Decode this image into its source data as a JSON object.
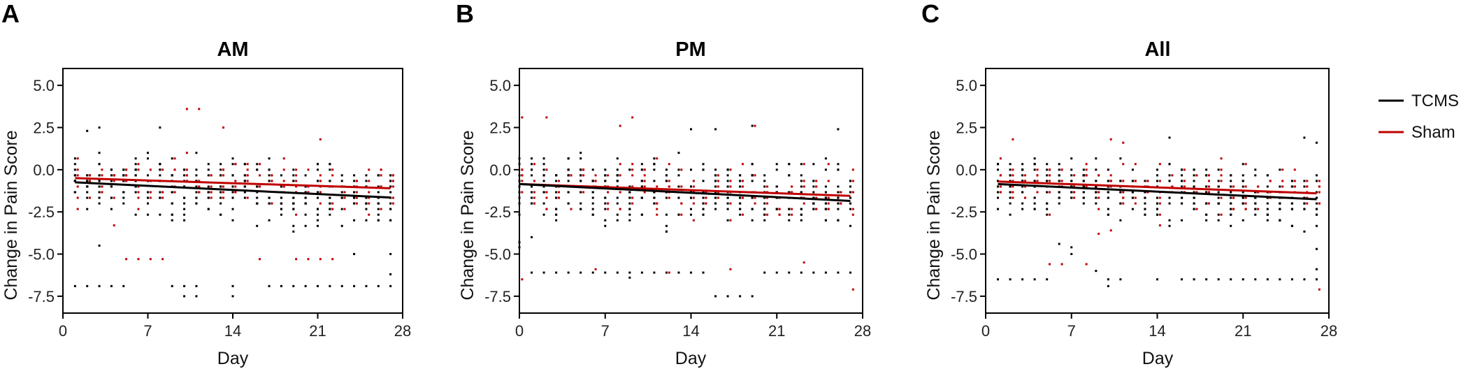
{
  "colors": {
    "tcms": "#000000",
    "sham": "#c00000",
    "axis": "#000000"
  },
  "legend": [
    {
      "name": "TCMS",
      "color": "#000000"
    },
    {
      "name": "Sham",
      "color": "#c00000"
    }
  ],
  "chart_data": [
    {
      "panel": "A",
      "title": "AM",
      "type": "scatter",
      "xlabel": "Day",
      "ylabel": "Change in Pain Score",
      "xlim": [
        0,
        28
      ],
      "ylim": [
        -8.5,
        6
      ],
      "xticks": [
        0,
        7,
        14,
        21,
        28
      ],
      "yticks": [
        5.0,
        2.5,
        0.0,
        -2.5,
        -5.0,
        -7.5
      ],
      "ytick_labels": [
        "5.0",
        "2.5",
        "0.0",
        "-2.5",
        "-5.0",
        "-7.5"
      ],
      "grid": false,
      "series": [
        {
          "name": "TCMS",
          "trend": {
            "x": [
              1,
              27
            ],
            "y": [
              -0.75,
              -1.65
            ]
          },
          "spread": 1.2,
          "outliers": [
            [
              1,
              -6.9
            ],
            [
              2,
              -6.9
            ],
            [
              3,
              -6.9
            ],
            [
              4,
              -6.9
            ],
            [
              5,
              -6.9
            ],
            [
              9,
              -6.9
            ],
            [
              10,
              -6.9
            ],
            [
              10,
              -7.5
            ],
            [
              11,
              -6.9
            ],
            [
              11,
              -7.5
            ],
            [
              14,
              -6.9
            ],
            [
              14,
              -7.5
            ],
            [
              17,
              -6.9
            ],
            [
              18,
              -6.9
            ],
            [
              19,
              -6.9
            ],
            [
              20,
              -6.9
            ],
            [
              21,
              -6.9
            ],
            [
              22,
              -6.9
            ],
            [
              23,
              -6.9
            ],
            [
              24,
              -6.9
            ],
            [
              25,
              -6.9
            ],
            [
              26,
              -6.9
            ],
            [
              27,
              -6.9
            ],
            [
              27,
              -5.0
            ],
            [
              27,
              -6.2
            ],
            [
              24,
              -5.0
            ],
            [
              3,
              -4.5
            ],
            [
              2,
              2.3
            ],
            [
              3,
              2.5
            ],
            [
              8,
              2.5
            ]
          ]
        },
        {
          "name": "Sham",
          "trend": {
            "x": [
              1,
              27
            ],
            "y": [
              -0.5,
              -1.1
            ]
          },
          "spread": 1.0,
          "outliers": [
            [
              10,
              3.6
            ],
            [
              11,
              3.6
            ],
            [
              13,
              2.5
            ],
            [
              5,
              -5.3
            ],
            [
              6,
              -5.3
            ],
            [
              7,
              -5.3
            ],
            [
              8,
              -5.3
            ],
            [
              16,
              -5.3
            ],
            [
              19,
              -5.3
            ],
            [
              20,
              -5.3
            ],
            [
              21,
              -5.3
            ],
            [
              22,
              -5.3
            ],
            [
              4,
              -3.3
            ],
            [
              21,
              1.8
            ]
          ]
        }
      ]
    },
    {
      "panel": "B",
      "title": "PM",
      "type": "scatter",
      "xlabel": "Day",
      "ylabel": "Change in Pain Score",
      "xlim": [
        0,
        28
      ],
      "ylim": [
        -8.5,
        6
      ],
      "xticks": [
        0,
        7,
        14,
        21,
        28
      ],
      "yticks": [
        5.0,
        2.5,
        0.0,
        -2.5,
        -5.0,
        -7.5
      ],
      "ytick_labels": [
        "5.0",
        "2.5",
        "0.0",
        "-2.5",
        "-5.0",
        "-7.5"
      ],
      "grid": false,
      "series": [
        {
          "name": "TCMS",
          "trend": {
            "x": [
              0,
              27
            ],
            "y": [
              -0.85,
              -1.85
            ]
          },
          "spread": 1.3,
          "outliers": [
            [
              1,
              -6.1
            ],
            [
              2,
              -6.1
            ],
            [
              3,
              -6.1
            ],
            [
              4,
              -6.1
            ],
            [
              5,
              -6.1
            ],
            [
              6,
              -6.1
            ],
            [
              7,
              -6.1
            ],
            [
              8,
              -6.1
            ],
            [
              9,
              -6.1
            ],
            [
              9,
              -6.4
            ],
            [
              10,
              -6.1
            ],
            [
              11,
              -6.1
            ],
            [
              12,
              -6.1
            ],
            [
              13,
              -6.1
            ],
            [
              14,
              -6.1
            ],
            [
              15,
              -6.1
            ],
            [
              16,
              -7.5
            ],
            [
              17,
              -7.5
            ],
            [
              18,
              -7.5
            ],
            [
              19,
              -7.5
            ],
            [
              20,
              -6.1
            ],
            [
              21,
              -6.1
            ],
            [
              22,
              -6.1
            ],
            [
              23,
              -6.1
            ],
            [
              24,
              -6.1
            ],
            [
              25,
              -6.1
            ],
            [
              26,
              -6.1
            ],
            [
              27,
              -6.1
            ],
            [
              0,
              -4.3
            ],
            [
              0,
              -4.6
            ],
            [
              1,
              -4.0
            ],
            [
              26,
              2.4
            ],
            [
              14,
              2.4
            ],
            [
              16,
              2.4
            ],
            [
              19,
              2.6
            ]
          ]
        },
        {
          "name": "Sham",
          "trend": {
            "x": [
              0,
              27
            ],
            "y": [
              -0.85,
              -1.55
            ]
          },
          "spread": 1.2,
          "outliers": [
            [
              0,
              3.1
            ],
            [
              2,
              3.1
            ],
            [
              9,
              3.1
            ],
            [
              8,
              2.6
            ],
            [
              19,
              2.6
            ],
            [
              0,
              -6.5
            ],
            [
              6,
              -5.9
            ],
            [
              27,
              -7.1
            ],
            [
              12,
              -6.1
            ],
            [
              17,
              -5.9
            ],
            [
              23,
              -5.5
            ]
          ]
        }
      ]
    },
    {
      "panel": "C",
      "title": "All",
      "type": "scatter",
      "xlabel": "Day",
      "ylabel": "Change in Pain Score",
      "xlim": [
        0,
        28
      ],
      "ylim": [
        -8.5,
        6
      ],
      "xticks": [
        0,
        7,
        14,
        21,
        28
      ],
      "yticks": [
        5.0,
        2.5,
        0.0,
        -2.5,
        -5.0,
        -7.5
      ],
      "ytick_labels": [
        "5.0",
        "2.5",
        "0.0",
        "-2.5",
        "-5.0",
        "-7.5"
      ],
      "grid": false,
      "series": [
        {
          "name": "TCMS",
          "trend": {
            "x": [
              1,
              27
            ],
            "y": [
              -0.85,
              -1.75
            ]
          },
          "spread": 1.1,
          "outliers": [
            [
              1,
              -6.5
            ],
            [
              2,
              -6.5
            ],
            [
              3,
              -6.5
            ],
            [
              4,
              -6.5
            ],
            [
              5,
              -6.5
            ],
            [
              10,
              -6.5
            ],
            [
              10,
              -6.9
            ],
            [
              11,
              -6.5
            ],
            [
              14,
              -6.5
            ],
            [
              16,
              -6.5
            ],
            [
              17,
              -6.5
            ],
            [
              18,
              -6.5
            ],
            [
              19,
              -6.5
            ],
            [
              20,
              -6.5
            ],
            [
              21,
              -6.5
            ],
            [
              22,
              -6.5
            ],
            [
              23,
              -6.5
            ],
            [
              24,
              -6.5
            ],
            [
              25,
              -6.5
            ],
            [
              26,
              -6.5
            ],
            [
              27,
              -6.5
            ],
            [
              27,
              -4.7
            ],
            [
              27,
              -5.9
            ],
            [
              6,
              -4.4
            ],
            [
              7,
              -4.6
            ],
            [
              7,
              -5.0
            ],
            [
              9,
              -6.0
            ],
            [
              15,
              1.9
            ],
            [
              26,
              1.9
            ],
            [
              27,
              1.6
            ]
          ]
        },
        {
          "name": "Sham",
          "trend": {
            "x": [
              1,
              27
            ],
            "y": [
              -0.7,
              -1.4
            ]
          },
          "spread": 1.0,
          "outliers": [
            [
              2,
              1.8
            ],
            [
              10,
              1.8
            ],
            [
              11,
              1.6
            ],
            [
              9,
              -3.8
            ],
            [
              10,
              -3.6
            ],
            [
              5,
              -5.6
            ],
            [
              6,
              -5.6
            ],
            [
              8,
              -5.6
            ],
            [
              27,
              -7.1
            ],
            [
              14,
              -3.3
            ]
          ]
        }
      ]
    }
  ]
}
